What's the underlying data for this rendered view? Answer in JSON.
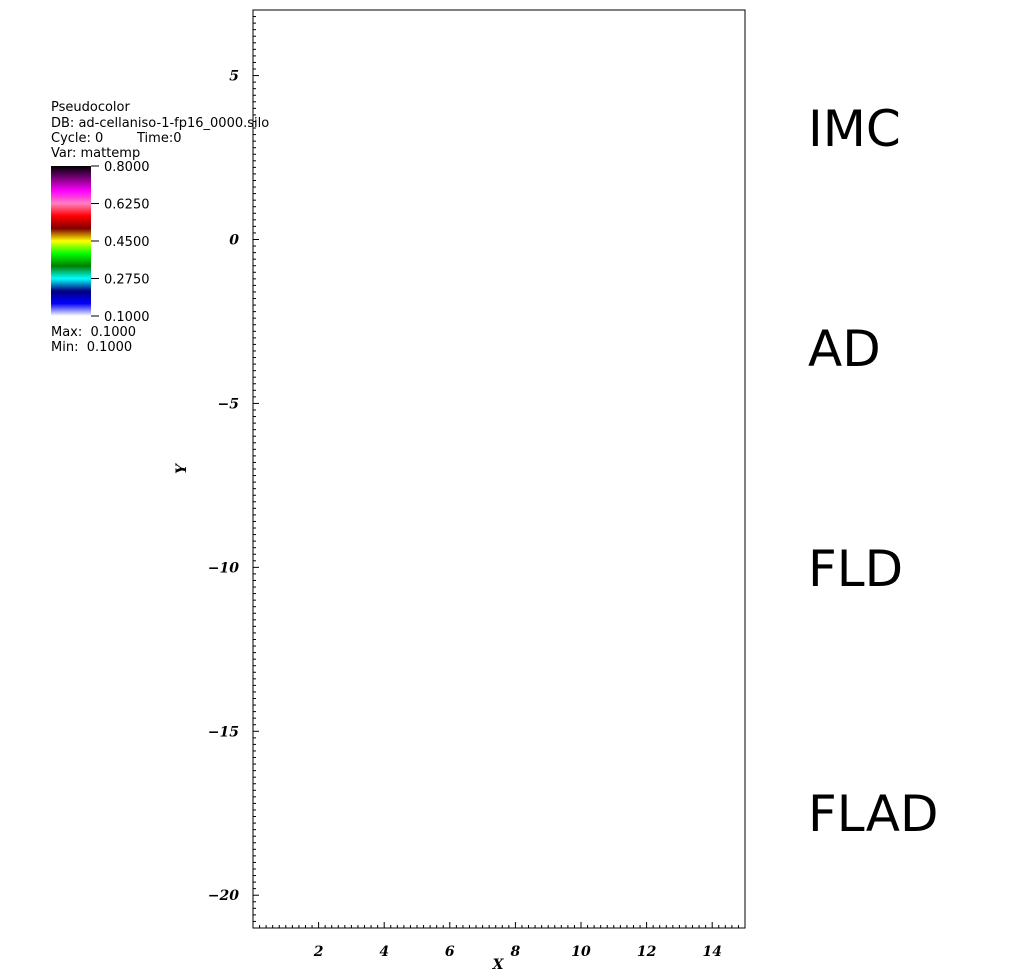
{
  "legend": {
    "plot_type": "Pseudocolor",
    "db": "DB: ad-cellaniso-1-fp16_0000.silo",
    "cycle": "Cycle: 0",
    "time": "Time:0",
    "var": "Var: mattemp",
    "ticks": [
      "0.8000",
      "0.6250",
      "0.4500",
      "0.2750",
      "0.1000"
    ],
    "max": "Max:  0.1000",
    "min": "Min:  0.1000",
    "colors": [
      "#000000",
      "#7f007f",
      "#ff00ff",
      "#ff7fbf",
      "#ff0000",
      "#7f0000",
      "#ffff00",
      "#00ff00",
      "#007f00",
      "#00ffff",
      "#00007f",
      "#0000ff",
      "#ffffff"
    ]
  },
  "side_labels": [
    "IMC",
    "AD",
    "FLD",
    "FLAD"
  ],
  "chart_data": {
    "type": "heatmap",
    "title": "",
    "xlabel": "X",
    "ylabel": "Y",
    "xlim": [
      0,
      15
    ],
    "ylim": [
      -21,
      7
    ],
    "x_ticks": [
      "2",
      "4",
      "6",
      "8",
      "10",
      "12",
      "14"
    ],
    "y_ticks": [
      "5",
      "0",
      "−5",
      "−10",
      "−15",
      "−20"
    ],
    "grid": false
  }
}
